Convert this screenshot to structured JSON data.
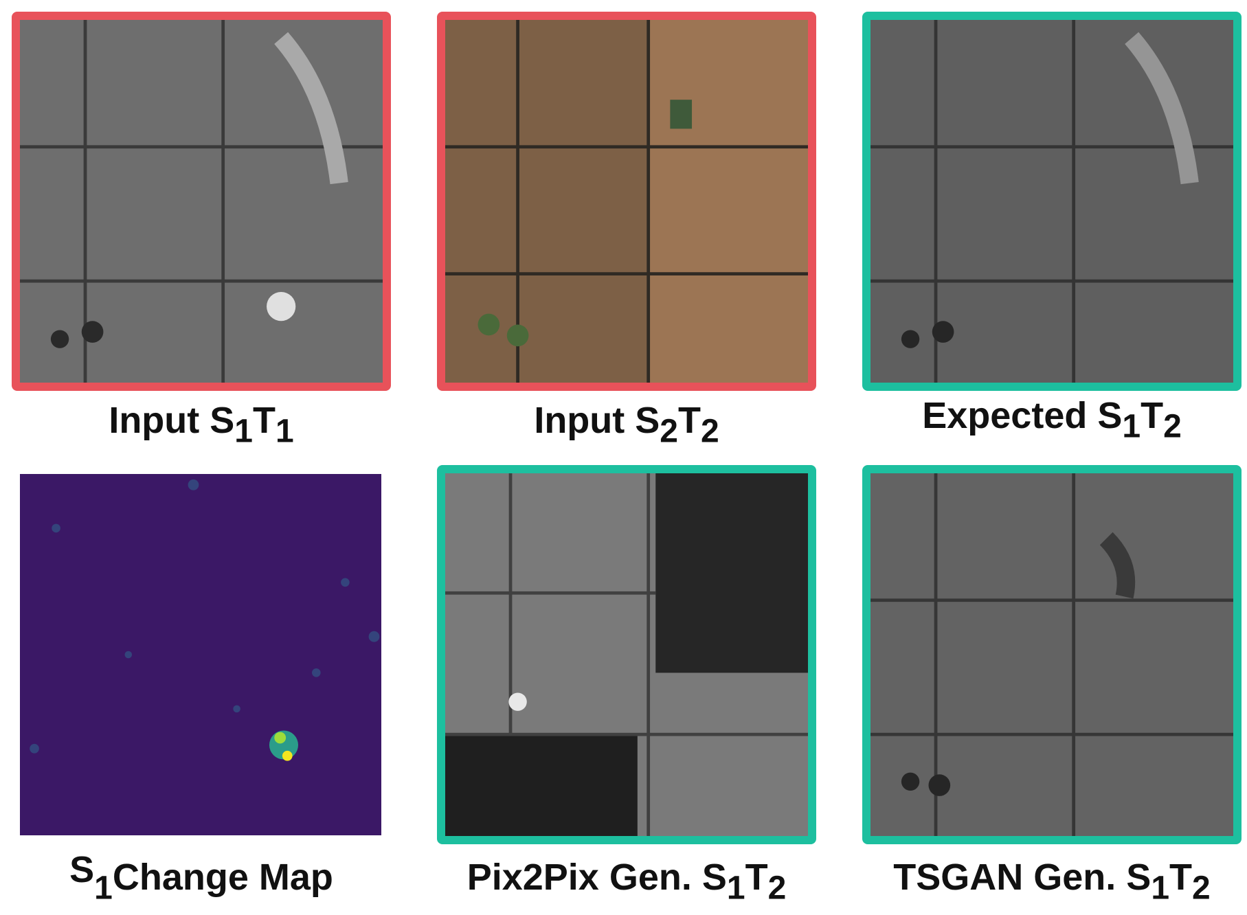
{
  "colors": {
    "input_frame": "#e8525a",
    "generated_frame": "#1dbf9f"
  },
  "panels": [
    {
      "id": "input-s1t1",
      "frame": "red",
      "style": "sar",
      "caption": {
        "prefix": "Input S",
        "s1": "1",
        "mid": "T",
        "s2": "1"
      }
    },
    {
      "id": "input-s2t2",
      "frame": "red",
      "style": "optical",
      "caption": {
        "prefix": "Input S",
        "s1": "2",
        "mid": "T",
        "s2": "2"
      }
    },
    {
      "id": "expected-s1t2",
      "frame": "teal",
      "style": "sar",
      "caption": {
        "prefix": "Expected S",
        "s1": "1",
        "mid": "T",
        "s2": "2"
      }
    },
    {
      "id": "s1-change-map",
      "frame": "none",
      "style": "changemap",
      "caption": {
        "prefix": "S",
        "s1": "1",
        "mid": "Change Map",
        "s2": ""
      }
    },
    {
      "id": "pix2pix-gen-s1t2",
      "frame": "teal",
      "style": "sar-dark",
      "caption": {
        "prefix": "Pix2Pix Gen. S",
        "s1": "1",
        "mid": "T",
        "s2": "2"
      }
    },
    {
      "id": "tsgan-gen-s1t2",
      "frame": "teal",
      "style": "sar",
      "caption": {
        "prefix": "TSGAN Gen. S",
        "s1": "1",
        "mid": "T",
        "s2": "2"
      }
    }
  ]
}
